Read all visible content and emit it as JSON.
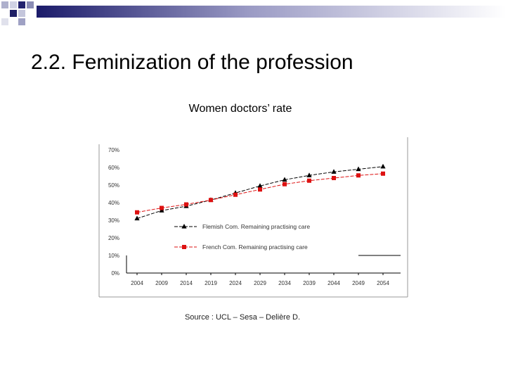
{
  "slide": {
    "title": "2.2. Feminization of the profession",
    "source": "Source : UCL – Sesa – Delière D."
  },
  "chart_data": {
    "type": "line",
    "title": "Women doctors’ rate",
    "xlabel": "",
    "ylabel": "",
    "categories": [
      "2004",
      "2009",
      "2014",
      "2019",
      "2024",
      "2029",
      "2034",
      "2039",
      "2044",
      "2049",
      "2054"
    ],
    "y_ticks": [
      "0%",
      "10%",
      "20%",
      "30%",
      "40%",
      "50%",
      "60%",
      "70%"
    ],
    "ylim": [
      0,
      70
    ],
    "grid": false,
    "legend_position": "inside-lower-left",
    "series": [
      {
        "name": "Flemish Com. Remaining practising care",
        "color": "#000000",
        "marker": "triangle",
        "dash": "dashed",
        "values": [
          31,
          35.5,
          38,
          41.5,
          45.5,
          49.5,
          53,
          55.5,
          57.5,
          59,
          60.5
        ]
      },
      {
        "name": "French Com. Remaining practising care",
        "color": "#dd1111",
        "marker": "square",
        "dash": "dashed",
        "values": [
          34.5,
          37,
          39,
          41.5,
          44.5,
          47.5,
          50.5,
          52.5,
          54,
          55.5,
          56.5
        ]
      }
    ]
  }
}
